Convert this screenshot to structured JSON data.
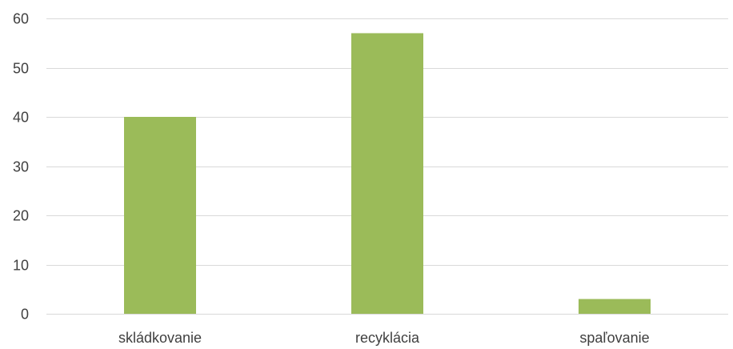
{
  "chart_data": {
    "type": "bar",
    "title": "",
    "xlabel": "",
    "ylabel": "",
    "categories": [
      "skládkovanie",
      "recyklácia",
      "spaľovanie"
    ],
    "values": [
      40,
      57,
      3
    ],
    "ylim": [
      0,
      60
    ],
    "yticks": [
      "0",
      "10",
      "20",
      "30",
      "40",
      "50",
      "60"
    ],
    "grid": true,
    "legend": "none",
    "bar_color": "#9bbb59"
  }
}
